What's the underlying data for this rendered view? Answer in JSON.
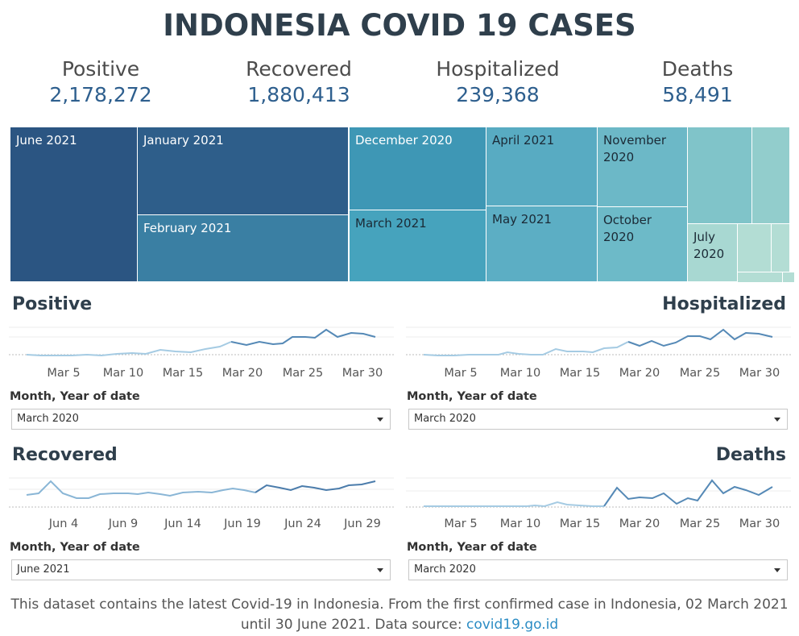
{
  "title": "INDONESIA COVID 19 CASES",
  "kpis": [
    {
      "label": "Positive",
      "value": "2,178,272"
    },
    {
      "label": "Recovered",
      "value": "1,880,413"
    },
    {
      "label": "Hospitalized",
      "value": "239,368"
    },
    {
      "label": "Deaths",
      "value": "58,491"
    }
  ],
  "treemap": {
    "labels": {
      "jun2021": "June 2021",
      "jan2021": "January 2021",
      "feb2021": "February 2021",
      "dec2020": "December 2020",
      "mar2021": "March 2021",
      "apr2021": "April 2021",
      "may2021": "May 2021",
      "nov2020": "November 2020",
      "oct2020": "October 2020",
      "jul2020": "July 2020"
    },
    "colors": {
      "jun2021": "#2b5582",
      "jan2021": "#2e5e8a",
      "feb2021": "#3a7fa3",
      "dec2020": "#3e97b5",
      "mar2021": "#46a3bd",
      "apr2021": "#58abc2",
      "may2021": "#5caec4",
      "nov2020": "#6cb8c7",
      "oct2020": "#6dbac8",
      "sep2020": "#80c4c9",
      "aug2020": "#92cdcc",
      "jul2020": "#a8d8d2",
      "small": "#b3ddd4"
    }
  },
  "charts": {
    "positive": {
      "title": "Positive",
      "x_ticks": [
        "Mar 5",
        "Mar 10",
        "Mar 15",
        "Mar 20",
        "Mar 25",
        "Mar 30"
      ],
      "filter_label": "Month, Year of date",
      "filter_value": "March 2020"
    },
    "hospitalized": {
      "title": "Hospitalized",
      "x_ticks": [
        "Mar 5",
        "Mar 10",
        "Mar 15",
        "Mar 20",
        "Mar 25",
        "Mar 30"
      ],
      "filter_label": "Month, Year of date",
      "filter_value": "March 2020"
    },
    "recovered": {
      "title": "Recovered",
      "x_ticks": [
        "Jun 4",
        "Jun 9",
        "Jun 14",
        "Jun 19",
        "Jun 24",
        "Jun 29"
      ],
      "filter_label": "Month, Year of date",
      "filter_value": "June 2021"
    },
    "deaths": {
      "title": "Deaths",
      "x_ticks": [
        "Mar 5",
        "Mar 10",
        "Mar 15",
        "Mar 20",
        "Mar 25",
        "Mar 30"
      ],
      "filter_label": "Month, Year of date",
      "filter_value": "March 2020"
    }
  },
  "footer": {
    "text": "This dataset contains the latest Covid-19 in Indonesia. From the first confirmed case in Indonesia, 02 March 2021 until 30 June 2021. Data source:",
    "link": "covid19.go.id"
  }
}
